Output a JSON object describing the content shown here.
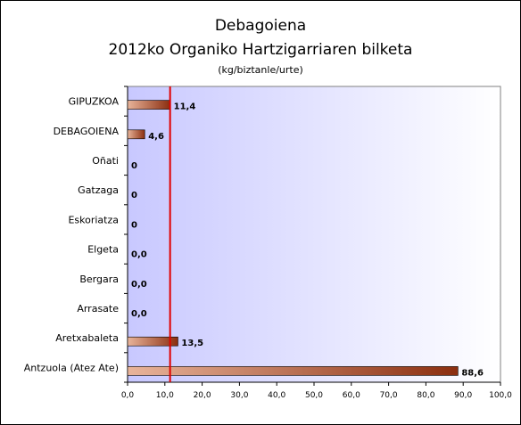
{
  "chart_data": {
    "type": "bar",
    "orientation": "horizontal",
    "title": "Debagoiena",
    "subtitle": "2012ko Organiko Hartzigarriaren bilketa",
    "unit_label": "(kg/biztanle/urte)",
    "categories": [
      "GIPUZKOA",
      "DEBAGOIENA",
      "Oñati",
      "Gatzaga",
      "Eskoriatza",
      "Elgeta",
      "Bergara",
      "Arrasate",
      "Aretxabaleta",
      "Antzuola (Atez Ate)"
    ],
    "values": [
      11.4,
      4.6,
      0,
      0,
      0,
      0,
      0,
      0,
      13.5,
      88.6
    ],
    "value_labels": [
      "11,4",
      "4,6",
      "0",
      "0",
      "0",
      "0,0",
      "0,0",
      "0,0",
      "13,5",
      "88,6"
    ],
    "xlim": [
      0,
      100
    ],
    "xticks": [
      0,
      10,
      20,
      30,
      40,
      50,
      60,
      70,
      80,
      90,
      100
    ],
    "xtick_labels": [
      "0,0",
      "10,0",
      "20,0",
      "30,0",
      "40,0",
      "50,0",
      "60,0",
      "70,0",
      "80,0",
      "90,0",
      "100,0"
    ],
    "reference_line": {
      "value": 11.4,
      "color": "#e00000"
    },
    "bar_color_dark": "#8b2e10",
    "bar_color_light": "#e8b49a",
    "plot_bg_left": "#c8c8ff",
    "plot_bg_right": "#ffffff",
    "grid": false,
    "legend": "none"
  }
}
